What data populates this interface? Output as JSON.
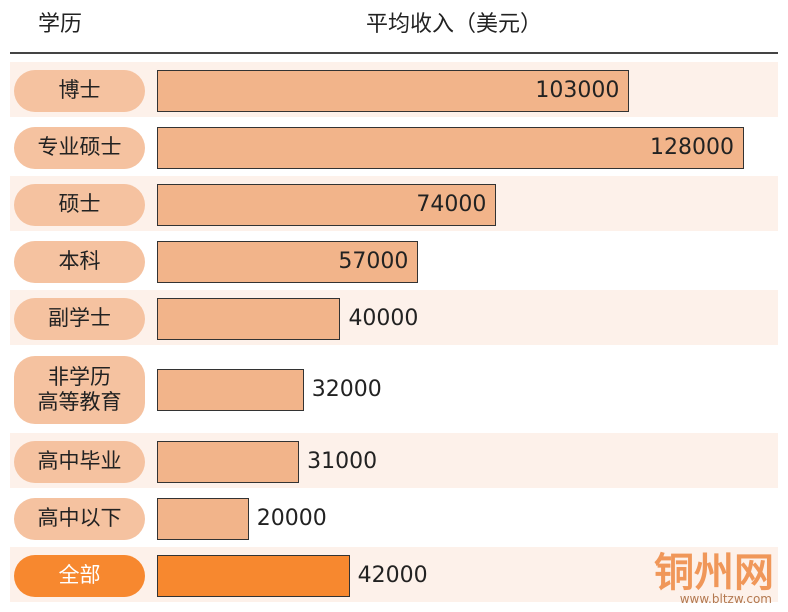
{
  "chart_data": {
    "type": "bar",
    "header": {
      "category": "学历",
      "value": "平均收入（美元）"
    },
    "categories": [
      "博士",
      "专业硕士",
      "硕士",
      "本科",
      "副学士",
      "非学历\n高等教育",
      "高中毕业",
      "高中以下",
      "全部"
    ],
    "values": [
      103000,
      128000,
      74000,
      57000,
      40000,
      32000,
      31000,
      20000,
      42000
    ],
    "colors": [
      "#f2b48a",
      "#f2b48a",
      "#f2b48a",
      "#f2b48a",
      "#f2b48a",
      "#f2b48a",
      "#f2b48a",
      "#f2b48a",
      "#f7882f"
    ],
    "watermark": {
      "name": "铜州网",
      "url": "www.bltzw.com"
    }
  }
}
